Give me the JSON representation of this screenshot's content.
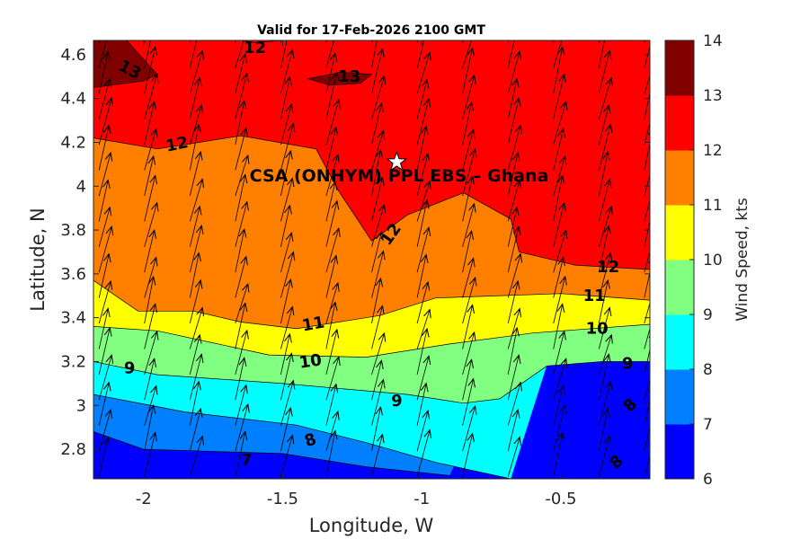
{
  "chart_data": {
    "type": "contourf",
    "title": "Valid for 17-Feb-2026 2100 GMT",
    "xlabel": "Longitude, W",
    "ylabel": "Latitude, N",
    "xlim": [
      -2.18,
      -0.18
    ],
    "ylim": [
      2.665,
      4.665
    ],
    "xticks": [
      -2,
      -1.5,
      -1,
      -0.5
    ],
    "xtick_labels": [
      "-2",
      "-1.5",
      "-1",
      "-0.5"
    ],
    "yticks": [
      2.8,
      3,
      3.2,
      3.4,
      3.6,
      3.8,
      4,
      4.2,
      4.4,
      4.6
    ],
    "ytick_labels": [
      "2.8",
      "3",
      "3.2",
      "3.4",
      "3.6",
      "3.8",
      "4",
      "4.2",
      "4.4",
      "4.6"
    ],
    "colorbar": {
      "label": "Wind Speed, kts",
      "levels": [
        6,
        7,
        8,
        9,
        10,
        11,
        12,
        13,
        14
      ],
      "tick_labels": [
        "6",
        "7",
        "8",
        "9",
        "10",
        "11",
        "12",
        "13",
        "14"
      ],
      "colors": [
        "#0000ff",
        "#0080ff",
        "#00ffff",
        "#80ff80",
        "#ffff00",
        "#ff8000",
        "#ff0000",
        "#800000"
      ]
    },
    "contour_levels": [
      {
        "value": 7,
        "points": [
          [
            -2.18,
            2.88
          ],
          [
            -2.0,
            2.8
          ],
          [
            -1.5,
            2.78
          ],
          [
            -1.2,
            2.72
          ],
          [
            -0.9,
            2.68
          ]
        ]
      },
      {
        "value": 8,
        "points": [
          [
            -2.18,
            3.05
          ],
          [
            -1.85,
            2.97
          ],
          [
            -1.45,
            2.91
          ],
          [
            -1.2,
            2.83
          ],
          [
            -0.95,
            2.74
          ],
          [
            -0.68,
            2.665
          ]
        ]
      },
      {
        "value": 9,
        "points": [
          [
            -2.18,
            3.2
          ],
          [
            -1.95,
            3.14
          ],
          [
            -1.5,
            3.1
          ],
          [
            -1.05,
            3.05
          ],
          [
            -0.85,
            3.01
          ],
          [
            -0.72,
            3.03
          ],
          [
            -0.55,
            3.18
          ],
          [
            -0.35,
            3.2
          ],
          [
            -0.18,
            3.2
          ]
        ]
      },
      {
        "value": 10,
        "points": [
          [
            -2.18,
            3.36
          ],
          [
            -1.95,
            3.34
          ],
          [
            -1.55,
            3.23
          ],
          [
            -1.2,
            3.22
          ],
          [
            -0.9,
            3.28
          ],
          [
            -0.6,
            3.33
          ],
          [
            -0.18,
            3.37
          ]
        ]
      },
      {
        "value": 11,
        "points": [
          [
            -2.18,
            3.57
          ],
          [
            -2.02,
            3.43
          ],
          [
            -1.82,
            3.43
          ],
          [
            -1.65,
            3.38
          ],
          [
            -1.45,
            3.35
          ],
          [
            -1.15,
            3.41
          ],
          [
            -0.95,
            3.49
          ],
          [
            -0.5,
            3.51
          ],
          [
            -0.18,
            3.48
          ]
        ]
      },
      {
        "value": 12,
        "points": [
          [
            -2.18,
            4.22
          ],
          [
            -1.95,
            4.17
          ],
          [
            -1.65,
            4.23
          ],
          [
            -1.38,
            4.17
          ],
          [
            -1.3,
            3.98
          ],
          [
            -1.18,
            3.75
          ],
          [
            -1.05,
            3.87
          ],
          [
            -0.85,
            3.97
          ],
          [
            -0.68,
            3.85
          ],
          [
            -0.65,
            3.7
          ],
          [
            -0.45,
            3.64
          ],
          [
            -0.18,
            3.62
          ]
        ]
      }
    ],
    "contour_labels": [
      {
        "text": "12",
        "lon": -1.6,
        "lat": 4.63,
        "angle": 0
      },
      {
        "text": "13",
        "lon": -2.05,
        "lat": 4.53,
        "angle": 28
      },
      {
        "text": "13",
        "lon": -1.26,
        "lat": 4.5,
        "angle": 0
      },
      {
        "text": "12",
        "lon": -1.88,
        "lat": 4.19,
        "angle": -12
      },
      {
        "text": "12",
        "lon": -1.11,
        "lat": 3.78,
        "angle": -55
      },
      {
        "text": "12",
        "lon": -0.33,
        "lat": 3.63,
        "angle": 0
      },
      {
        "text": "11",
        "lon": -1.39,
        "lat": 3.37,
        "angle": -10
      },
      {
        "text": "11",
        "lon": -0.38,
        "lat": 3.5,
        "angle": 0
      },
      {
        "text": "10",
        "lon": -1.4,
        "lat": 3.2,
        "angle": -8
      },
      {
        "text": "10",
        "lon": -0.37,
        "lat": 3.35,
        "angle": 0
      },
      {
        "text": "9",
        "lon": -2.05,
        "lat": 3.17,
        "angle": 0
      },
      {
        "text": "9",
        "lon": -1.09,
        "lat": 3.02,
        "angle": 0
      },
      {
        "text": "9",
        "lon": -0.26,
        "lat": 3.19,
        "angle": 0
      },
      {
        "text": "8",
        "lon": -1.4,
        "lat": 2.84,
        "angle": -20
      },
      {
        "text": "8",
        "lon": -0.25,
        "lat": 3.0,
        "angle": -45
      },
      {
        "text": "8",
        "lon": -0.3,
        "lat": 2.74,
        "angle": -40
      },
      {
        "text": "7",
        "lon": -1.63,
        "lat": 2.75,
        "angle": 0
      }
    ],
    "site": {
      "name": "CSA (ONHYM) PPL EBS  – Ghana",
      "lon": -1.09,
      "lat": 4.11,
      "marker": "star"
    },
    "vectors": {
      "count_x": 13,
      "count_y": 18,
      "direction": "toward NNE (southerly-southwesterly wind)"
    }
  }
}
